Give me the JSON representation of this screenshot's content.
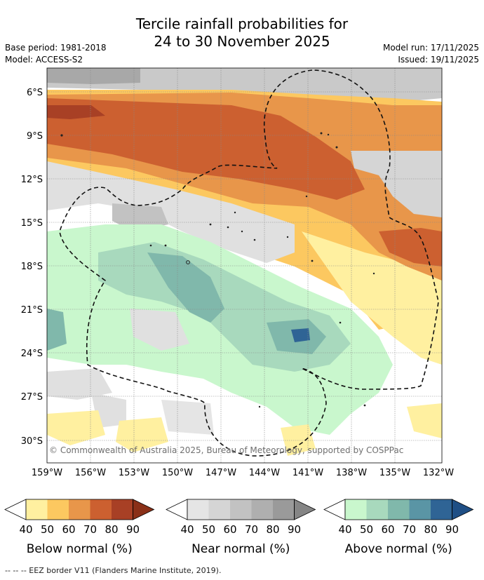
{
  "title": {
    "line1": "Tercile rainfall probabilities for",
    "line2": "24 to 30 November 2025"
  },
  "meta": {
    "base_period": "Base period: 1981-2018",
    "model": "Model: ACCESS-S2",
    "model_run": "Model run: 17/11/2025",
    "issued": "Issued: 19/11/2025"
  },
  "map": {
    "lat_labels": [
      "6°S",
      "9°S",
      "12°S",
      "15°S",
      "18°S",
      "21°S",
      "24°S",
      "27°S",
      "30°S"
    ],
    "lon_labels": [
      "159°W",
      "156°W",
      "153°W",
      "150°W",
      "147°W",
      "144°W",
      "141°W",
      "138°W",
      "135°W",
      "132°W"
    ],
    "copyright": "© Commonwealth of Australia 2025, Bureau of Meteorology, supported by COSPPac"
  },
  "legend": {
    "ticks": [
      "40",
      "50",
      "60",
      "70",
      "80",
      "90"
    ],
    "groups": [
      {
        "title": "Below normal (%)",
        "colors": [
          "#fff0a0",
          "#fcc860",
          "#e8964a",
          "#cc6030",
          "#a84025"
        ]
      },
      {
        "title": "Near normal (%)",
        "colors": [
          "#e5e5e5",
          "#d5d5d5",
          "#c2c2c2",
          "#afafaf",
          "#9a9a9a"
        ]
      },
      {
        "title": "Above normal (%)",
        "colors": [
          "#c9f7cd",
          "#a8d9bd",
          "#80b8ab",
          "#5a95a5",
          "#2f6495"
        ]
      }
    ]
  },
  "footer": "-- -- -- EEZ border V11 (Flanders Marine Institute, 2019)."
}
